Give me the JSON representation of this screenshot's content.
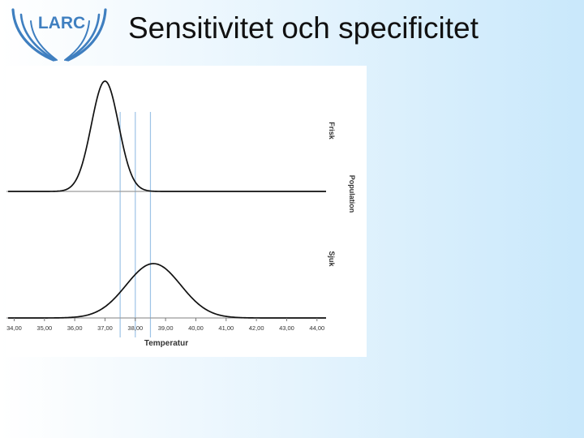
{
  "slide": {
    "title": "Sensitivitet och specificitet",
    "logo_text": "LARC"
  },
  "colors": {
    "logo_blue": "#3f7fc0",
    "curve": "#111111",
    "baseline": "#9a9a9a",
    "cutoff_line": "#9dc3e6"
  },
  "chart_data": {
    "type": "line",
    "title": "",
    "xlabel": "Temperatur",
    "ylabel": "Population",
    "xlim": [
      33.8,
      44.3
    ],
    "x_ticks": [
      34,
      35,
      36,
      37,
      38,
      39,
      40,
      41,
      42,
      43,
      44
    ],
    "x_tick_labels": [
      "34,00",
      "35,00",
      "36,00",
      "37,00",
      "38,00",
      "39,00",
      "40,00",
      "41,00",
      "42,00",
      "43,00",
      "44,00"
    ],
    "panels": [
      {
        "label": "Frisk",
        "mean": 37.0,
        "sd": 0.45,
        "relative_peak": 1.0
      },
      {
        "label": "Sjuk",
        "mean": 38.6,
        "sd": 0.9,
        "relative_peak": 0.5
      }
    ],
    "cutoffs": [
      37.5,
      38.0,
      38.5
    ],
    "grid": false
  }
}
